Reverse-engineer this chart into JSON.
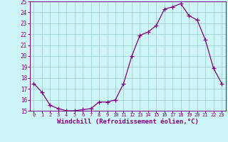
{
  "x": [
    0,
    1,
    2,
    3,
    4,
    5,
    6,
    7,
    8,
    9,
    10,
    11,
    12,
    13,
    14,
    15,
    16,
    17,
    18,
    19,
    20,
    21,
    22,
    23
  ],
  "y": [
    17.5,
    16.7,
    15.5,
    15.2,
    15.0,
    15.0,
    15.1,
    15.2,
    15.8,
    15.8,
    16.0,
    17.5,
    20.0,
    21.9,
    22.2,
    22.8,
    24.3,
    24.5,
    24.8,
    23.7,
    23.3,
    21.5,
    18.9,
    17.5
  ],
  "line_color": "#800080",
  "marker": "+",
  "markersize": 4,
  "linewidth": 0.9,
  "xlabel": "Windchill (Refroidissement éolien,°C)",
  "xlabel_fontsize": 6.5,
  "xlabel_color": "#800080",
  "background_color": "#cef5f5",
  "grid_color": "#99cccc",
  "tick_color": "#800080",
  "spine_color": "#800080",
  "ylim": [
    15,
    25
  ],
  "xlim": [
    -0.5,
    23.5
  ],
  "yticks": [
    15,
    16,
    17,
    18,
    19,
    20,
    21,
    22,
    23,
    24,
    25
  ],
  "xticks": [
    0,
    1,
    2,
    3,
    4,
    5,
    6,
    7,
    8,
    9,
    10,
    11,
    12,
    13,
    14,
    15,
    16,
    17,
    18,
    19,
    20,
    21,
    22,
    23
  ],
  "tick_fontsize": 5.5,
  "xtick_fontsize": 5.0
}
